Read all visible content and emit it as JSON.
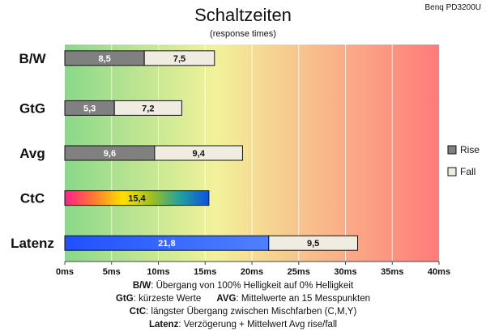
{
  "chart_data": {
    "type": "bar",
    "orientation": "horizontal",
    "stacked": true,
    "title": "Schaltzeiten",
    "subtitle": "(response times)",
    "model": "Benq PD3200U",
    "categories": [
      "B/W",
      "GtG",
      "Avg",
      "CtC",
      "Latenz"
    ],
    "series": [
      {
        "name": "Rise",
        "values": [
          8.5,
          5.3,
          9.6,
          15.4,
          21.8
        ],
        "labels": [
          "8,5",
          "5,3",
          "9,6",
          "15,4",
          "21,8"
        ]
      },
      {
        "name": "Fall",
        "values": [
          7.5,
          7.2,
          9.4,
          null,
          9.5
        ],
        "labels": [
          "7,5",
          "7,2",
          "9,4",
          "",
          "9,5"
        ]
      }
    ],
    "xlim": [
      0,
      40
    ],
    "xticks": [
      0,
      5,
      10,
      15,
      20,
      25,
      30,
      35,
      40
    ],
    "xtick_labels": [
      "0ms",
      "5ms",
      "10ms",
      "15ms",
      "20ms",
      "25ms",
      "30ms",
      "35ms",
      "40ms"
    ],
    "grid": true,
    "legend": "right",
    "background_gradient": [
      "#8ad88a",
      "#f2f29a",
      "#ff7a7a"
    ],
    "colors": {
      "rise": "#808080",
      "fall": "#f0ece2",
      "latenz_rise": "#3a64f0"
    }
  },
  "footer": {
    "line1_key": "B/W",
    "line1_text": ":  Übergang von 100% Helligkeit auf 0% Helligkeit",
    "line2_key1": "GtG",
    "line2_text1": ": kürzeste  Werte",
    "line2_key2": "AVG",
    "line2_text2": ": Mittelwerte  an 15 Messpunkten",
    "line3_key": "CtC",
    "line3_text": ": längster Übergang  zwischen Mischfarben (C,M,Y)",
    "line4_key": "Latenz",
    "line4_text": ": Verzögerung  + Mittelwert  Avg rise/fall"
  }
}
